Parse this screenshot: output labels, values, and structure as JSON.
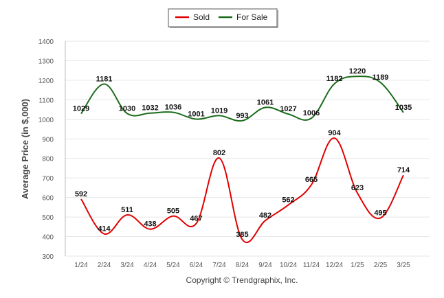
{
  "chart_data": {
    "type": "line",
    "categories": [
      "1/24",
      "2/24",
      "3/24",
      "4/24",
      "5/24",
      "6/24",
      "7/24",
      "8/24",
      "9/24",
      "10/24",
      "11/24",
      "12/24",
      "1/25",
      "2/25",
      "3/25"
    ],
    "series": [
      {
        "name": "Sold",
        "color": "#e00000",
        "values": [
          592,
          414,
          511,
          438,
          505,
          467,
          802,
          385,
          482,
          562,
          665,
          904,
          623,
          495,
          714
        ]
      },
      {
        "name": "For Sale",
        "color": "#1a6b1a",
        "values": [
          1029,
          1181,
          1030,
          1032,
          1036,
          1001,
          1019,
          993,
          1061,
          1027,
          1006,
          1182,
          1220,
          1189,
          1035
        ]
      }
    ],
    "ylabel": "Average Price (in $,000)",
    "ylim": [
      300,
      1400
    ],
    "yticks": [
      300,
      400,
      500,
      600,
      700,
      800,
      900,
      1000,
      1100,
      1200,
      1300,
      1400
    ],
    "grid": true,
    "legend_position": "top-center"
  },
  "footer": {
    "copyright": "Copyright © Trendgraphix, Inc."
  }
}
